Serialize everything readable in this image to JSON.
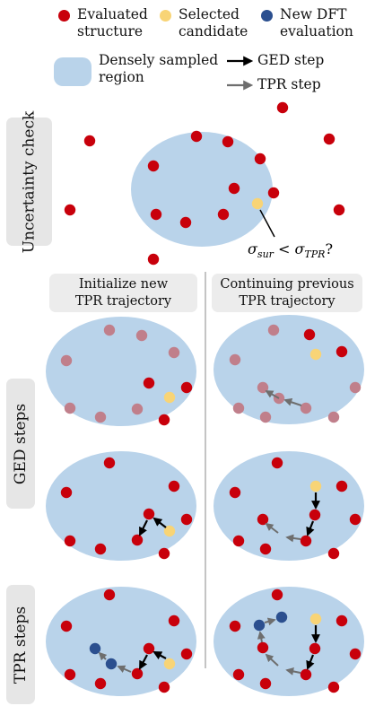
{
  "legend": {
    "evaluated": [
      "Evaluated",
      "structure"
    ],
    "selected": [
      "Selected",
      "candidate"
    ],
    "new_dft": [
      "New DFT",
      "evaluation"
    ],
    "region": [
      "Densely sampled",
      "region"
    ],
    "ged_step": "GED step",
    "tpr_step": "TPR step"
  },
  "rows": {
    "uncertainty": "Uncertainty check",
    "ged": "GED steps",
    "tpr": "TPR steps"
  },
  "columns": {
    "initialize": [
      "Initialize new",
      "TPR trajectory"
    ],
    "continuing": [
      "Continuing previous",
      "TPR trajectory"
    ]
  },
  "condition": {
    "sigma": "σ",
    "sur": "sur",
    "lt": " < ",
    "tpr": "TPR",
    "q": "?"
  },
  "colors": {
    "evaluated": "#c8000b",
    "evaluated_faded": "#c07f8b",
    "selected": "#f8d476",
    "new_dft": "#2b4f8f",
    "region": "#b9d3ea",
    "ged_arrow": "#000000",
    "tpr_arrow": "#6e6e6e",
    "label_bg": "#e6e6e6"
  }
}
